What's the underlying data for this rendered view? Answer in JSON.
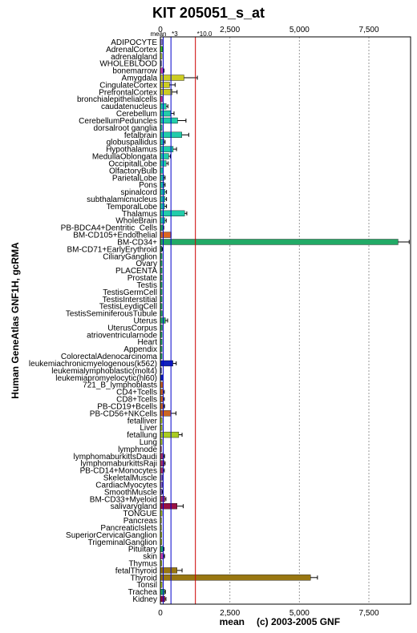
{
  "chart_data": {
    "type": "bar",
    "orientation": "horizontal",
    "title": "KIT 205051_s_at",
    "ylabel": "Human GeneAtlas GNF1H, gcRMA",
    "xlabel": "mean",
    "credit": "(c) 2003-2005 GNF",
    "xlim": [
      0,
      9000
    ],
    "xticks": [
      "0",
      "2,500",
      "5,000",
      "7,500"
    ],
    "xtick_values": [
      0,
      2500,
      5000,
      7500
    ],
    "reference_lines": [
      {
        "label": "mean",
        "value": 100,
        "color": "#0000cc"
      },
      {
        "label": "*3",
        "value": 380,
        "color": "#0000cc"
      },
      {
        "label": "*10.0",
        "value": 1260,
        "color": "#cc0000"
      }
    ],
    "grid": true,
    "categories": [
      "ADIPOCYTE",
      "AdrenalCortex",
      "adrenalgland",
      "WHOLEBLOOD",
      "bonemarrow",
      "Amygdala",
      "CingulateCortex",
      "PrefrontalCortex",
      "bronchialepithelialcells",
      "caudatenucleus",
      "Cerebellum",
      "CerebellumPeduncles",
      "dorsalroot ganglia",
      "fetalbrain",
      "globuspallidus",
      "Hypothalamus",
      "MedullaOblongata",
      "OccipitalLobe",
      "OlfactoryBulb",
      "ParietalLobe",
      "Pons",
      "spinalcord",
      "subthalamicnucleus",
      "TemporalLobe",
      "Thalamus",
      "WholeBrain",
      "PB-BDCA4+Dentritic_Cells",
      "BM-CD105+Endothelial",
      "BM-CD34+",
      "BM-CD71+EarlyErythroid",
      "CiliaryGanglion",
      "Ovary",
      "PLACENTA",
      "Prostate",
      "Testis",
      "TestisGermCell",
      "TestisInterstitial",
      "TestisLeydigCell",
      "TestisSeminiferousTubule",
      "Uterus",
      "UterusCorpus",
      "atrioventricularnode",
      "Heart",
      "Appendix",
      "ColorectalAdenocarcinoma",
      "leukemiachronicmyelogenous(k562)",
      "leukemialymphoblastic(molt4)",
      "leukemiapromyelocytic(hl60)",
      "721_B_lymphoblasts",
      "CD4+Tcells",
      "CD8+Tcells",
      "PB-CD19+Bcells",
      "PB-CD56+NKCells",
      "fetalliver",
      "Liver",
      "fetallung",
      "Lung",
      "lymphnode",
      "lymphomaburkittsDaudi",
      "lymphomaburkittsRaji",
      "PB-CD14+Monocytes",
      "SkeletalMuscle",
      "CardiacMyocytes",
      "SmoothMuscle",
      "BM-CD33+Myeloid",
      "salivarygland",
      "TONGUE",
      "Pancreas",
      "PancreaticIslets",
      "SuperiorCervicalGanglion",
      "TrigeminalGanglion",
      "Pituitary",
      "skin",
      "Thymus",
      "fetalThyroid",
      "Thyroid",
      "Tonsil",
      "Trachea",
      "Kidney"
    ],
    "values": [
      70,
      80,
      60,
      40,
      110,
      850,
      330,
      420,
      70,
      210,
      370,
      620,
      60,
      770,
      130,
      460,
      300,
      210,
      110,
      130,
      130,
      160,
      160,
      150,
      870,
      160,
      90,
      390,
      8550,
      50,
      60,
      60,
      60,
      60,
      60,
      60,
      60,
      60,
      70,
      180,
      70,
      60,
      60,
      60,
      60,
      450,
      40,
      90,
      90,
      110,
      110,
      120,
      380,
      60,
      60,
      660,
      60,
      40,
      120,
      140,
      110,
      80,
      80,
      60,
      160,
      600,
      60,
      40,
      40,
      50,
      50,
      100,
      120,
      50,
      600,
      5400,
      60,
      150,
      160
    ],
    "errors": [
      0,
      20,
      0,
      0,
      20,
      480,
      200,
      180,
      0,
      60,
      120,
      300,
      0,
      250,
      40,
      120,
      60,
      70,
      0,
      40,
      40,
      60,
      60,
      70,
      80,
      50,
      30,
      0,
      400,
      20,
      0,
      0,
      0,
      0,
      0,
      0,
      0,
      0,
      0,
      80,
      0,
      0,
      0,
      0,
      0,
      120,
      0,
      0,
      0,
      30,
      30,
      30,
      180,
      0,
      0,
      120,
      0,
      0,
      30,
      30,
      30,
      20,
      20,
      20,
      40,
      220,
      0,
      0,
      0,
      0,
      0,
      30,
      30,
      0,
      180,
      250,
      0,
      30,
      40
    ],
    "colors": [
      "#8a7fd4",
      "#44cc22",
      "#b8d84c",
      "#3355aa",
      "#cc44aa",
      "#cccc22",
      "#cccc22",
      "#cccc22",
      "#dd2299",
      "#22ccaa",
      "#22ccaa",
      "#22ccaa",
      "#22ccaa",
      "#22ccaa",
      "#22ccaa",
      "#22ccaa",
      "#22ccaa",
      "#22ccaa",
      "#22ccaa",
      "#22ccaa",
      "#22ccaa",
      "#22ccaa",
      "#22ccaa",
      "#22ccaa",
      "#22ccaa",
      "#22ccaa",
      "#22aa66",
      "#dd6622",
      "#22aa66",
      "#22aa66",
      "#22aa66",
      "#22aa66",
      "#22aa66",
      "#22aa66",
      "#22aa66",
      "#22aa66",
      "#22aa66",
      "#22aa66",
      "#22aa66",
      "#22aa66",
      "#22aa66",
      "#22aa66",
      "#22aa66",
      "#22aa66",
      "#22aa66",
      "#1122bb",
      "#1122bb",
      "#1122bb",
      "#cc6622",
      "#cc6622",
      "#cc6622",
      "#cc6622",
      "#cc6622",
      "#aacc22",
      "#aacc22",
      "#aacc22",
      "#aacc22",
      "#aa3366",
      "#aa3366",
      "#aa3366",
      "#aa3366",
      "#8866cc",
      "#8866cc",
      "#8866cc",
      "#aa3366",
      "#991144",
      "#aacc22",
      "#aacc22",
      "#aacc22",
      "#aacc22",
      "#aacc22",
      "#22aa66",
      "#cc44aa",
      "#aacc22",
      "#997711",
      "#997711",
      "#aacc22",
      "#22aa66",
      "#991144"
    ]
  }
}
